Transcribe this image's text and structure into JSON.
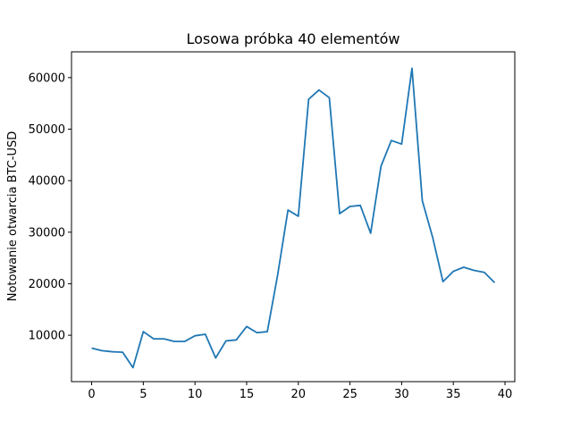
{
  "chart_data": {
    "type": "line",
    "title": "Losowa próbka 40 elementów",
    "xlabel": "",
    "ylabel": "Notowanie otwarcia BTC-USD",
    "xlim": [
      -1.95,
      40.95
    ],
    "ylim": [
      1000,
      65000
    ],
    "xticks": [
      0,
      5,
      10,
      15,
      20,
      25,
      30,
      35,
      40
    ],
    "yticks": [
      10000,
      20000,
      30000,
      40000,
      50000,
      60000
    ],
    "grid": false,
    "legend": "none",
    "series": [
      {
        "color": "#1f77b4",
        "x": [
          0,
          1,
          2,
          3,
          4,
          5,
          6,
          7,
          8,
          9,
          10,
          11,
          12,
          13,
          14,
          15,
          16,
          17,
          18,
          19,
          20,
          21,
          22,
          23,
          24,
          25,
          26,
          27,
          28,
          29,
          30,
          31,
          32,
          33,
          34,
          35,
          36,
          37,
          38,
          39
        ],
        "values": [
          7500,
          7000,
          6800,
          6700,
          3700,
          10700,
          9300,
          9300,
          8800,
          8800,
          9900,
          10200,
          5600,
          8900,
          9100,
          11700,
          10500,
          10700,
          21700,
          34300,
          33100,
          55800,
          57600,
          56100,
          33600,
          35000,
          35200,
          29800,
          42800,
          47800,
          47100,
          61800,
          36100,
          29000,
          20400,
          22400,
          23200,
          22600,
          22200,
          20200
        ]
      }
    ]
  }
}
